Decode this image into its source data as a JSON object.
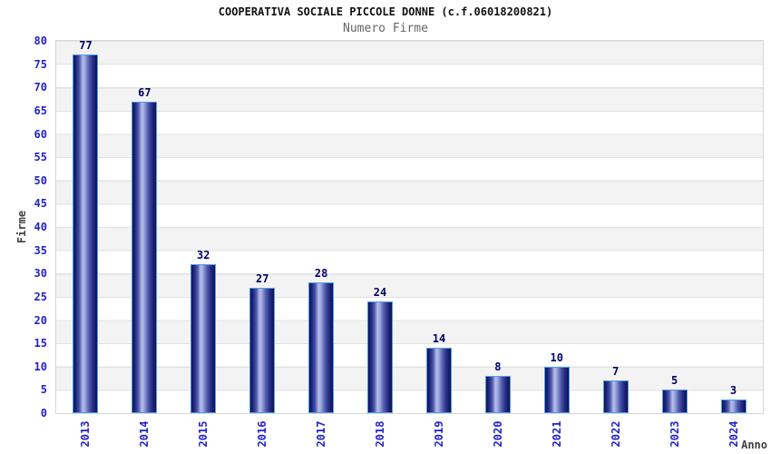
{
  "title": "COOPERATIVA SOCIALE PICCOLE DONNE (c.f.06018200821)",
  "subtitle": "Numero Firme",
  "chart_data": {
    "type": "bar",
    "title": "COOPERATIVA SOCIALE PICCOLE DONNE (c.f.06018200821)",
    "subtitle": "Numero Firme",
    "xlabel": "Anno",
    "ylabel": "Firme",
    "categories": [
      "2013",
      "2014",
      "2015",
      "2016",
      "2017",
      "2018",
      "2019",
      "2020",
      "2021",
      "2022",
      "2023",
      "2024"
    ],
    "values": [
      77,
      67,
      32,
      27,
      28,
      24,
      14,
      8,
      10,
      7,
      5,
      3
    ],
    "ylim": [
      0,
      80
    ],
    "ytick_step": 5,
    "yticks": [
      0,
      5,
      10,
      15,
      20,
      25,
      30,
      35,
      40,
      45,
      50,
      55,
      60,
      65,
      70,
      75,
      80
    ],
    "grid": "horizontal-bands",
    "legend": "none",
    "colors": {
      "bar_dark": "#12125a",
      "bar_light": "#b8c0ea",
      "bar_border": "#4e9be8",
      "tick_label": "#2222cc",
      "value_label": "#000066",
      "axis_title": "#404040",
      "grid_line": "#e2e2e2",
      "band_gray": "#f3f3f3",
      "band_white": "#ffffff",
      "plot_border": "#d8d8d8",
      "title_color": "#111111",
      "subtitle_color": "#666666"
    }
  }
}
